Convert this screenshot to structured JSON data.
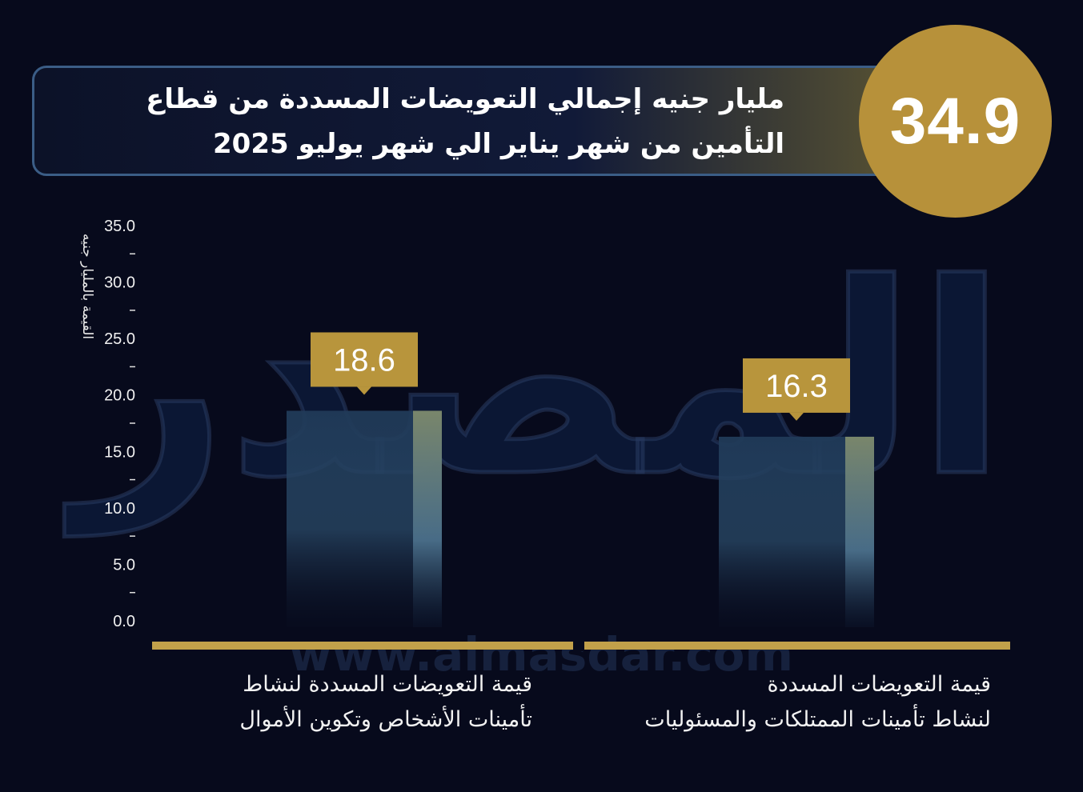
{
  "header": {
    "title_line1": "مليار جنيه إجمالي التعويضات المسددة من قطاع",
    "title_line2": "التأمين من شهر  يناير الي شهر يوليو 2025",
    "total_value": "34.9"
  },
  "watermark": {
    "logo_text": "المصدر",
    "url_text": "www.almasdar.com"
  },
  "colors": {
    "background": "#070a1c",
    "gold": "#b7913a",
    "baseline": "#c2a04a",
    "label_box": "#b8953c"
  },
  "chart_data": {
    "type": "bar",
    "categories": [
      "قيمة التعويضات المسددة لنشاط تأمينات الأشخاص وتكوين الأموال",
      "قيمة التعويضات المسددة لنشاط تأمينات الممتلكات والمسئوليات"
    ],
    "category_lines": [
      [
        "قيمة التعويضات المسددة لنشاط",
        "تأمينات الأشخاص وتكوين الأموال"
      ],
      [
        "قيمة التعويضات المسددة",
        "لنشاط تأمينات الممتلكات والمسئوليات"
      ]
    ],
    "values": [
      18.6,
      16.3
    ],
    "data_labels": [
      "18.6",
      "16.3"
    ],
    "ylabel": "القيمة بالمليار جنيه",
    "ylim": [
      0,
      35
    ],
    "yticks": [
      "0.0",
      "5.0",
      "10.0",
      "15.0",
      "20.0",
      "25.0",
      "30.0",
      "35.0"
    ],
    "grid": false,
    "legend": "none"
  }
}
